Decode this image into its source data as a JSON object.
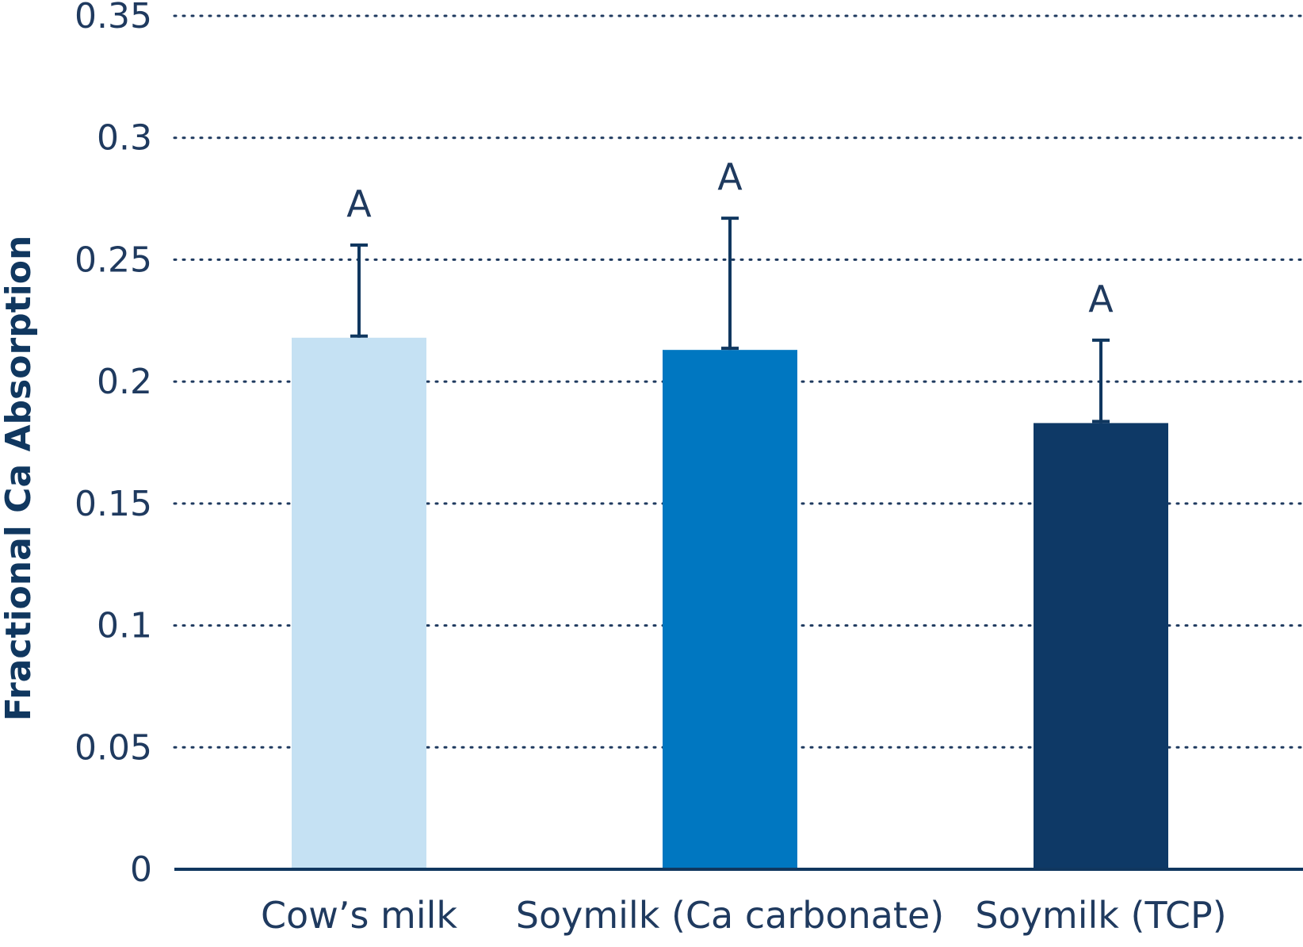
{
  "chart_data": {
    "type": "bar",
    "title": "",
    "xlabel": "",
    "ylabel": "Fractional Ca Absorption",
    "ylim": [
      0,
      0.35
    ],
    "yticks": [
      "0",
      "0.05",
      "0.1",
      "0.15",
      "0.2",
      "0.25",
      "0.3",
      "0.35"
    ],
    "yticks_values": [
      0,
      0.05,
      0.1,
      0.15,
      0.2,
      0.25,
      0.3,
      0.35
    ],
    "grid": "horizontal dotted",
    "categories": [
      "Cow’s milk",
      "Soymilk (Ca carbonate)",
      "Soymilk (TCP)"
    ],
    "values": [
      0.218,
      0.213,
      0.183
    ],
    "error_upper": [
      0.256,
      0.267,
      0.217
    ],
    "significance_labels": [
      "A",
      "A",
      "A"
    ],
    "colors": [
      "#c5e1f3",
      "#0077c1",
      "#0e3966"
    ]
  }
}
